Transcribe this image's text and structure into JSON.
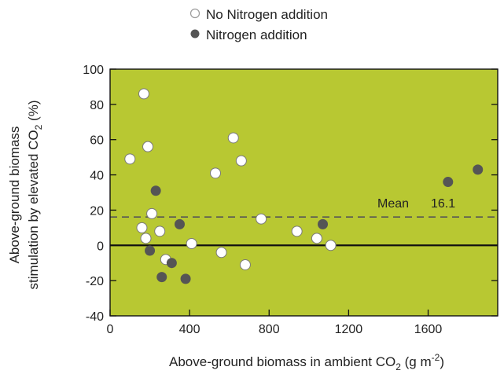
{
  "chart_data": {
    "type": "scatter",
    "title": "",
    "xlabel": "Above-ground biomass in ambient CO",
    "xlabel_sub": "2",
    "xlabel_units": " (g m",
    "xlabel_sup": "-2",
    "xlabel_close": ")",
    "ylabel_line1": "Above-ground biomass",
    "ylabel_line2": "stimulation by elevated CO",
    "ylabel_sub": "2",
    "ylabel_units": " (%)",
    "xlim": [
      0,
      1950
    ],
    "ylim": [
      -40,
      100
    ],
    "x_ticks": [
      0,
      400,
      800,
      1200,
      1600
    ],
    "x_tick_labels": [
      "0",
      "400",
      "800",
      "1200",
      "1600"
    ],
    "y_ticks": [
      -40,
      -20,
      0,
      20,
      40,
      60,
      80,
      100
    ],
    "y_tick_labels": [
      "-40",
      "-20",
      "0",
      "20",
      "40",
      "60",
      "80",
      "100"
    ],
    "grid": false,
    "legend_position": "top",
    "plot_background": "#b8c832",
    "reference_lines": [
      {
        "y": 0,
        "style": "solid"
      },
      {
        "y": 16.1,
        "style": "dashed"
      }
    ],
    "annotation": {
      "label": "Mean",
      "value": "16.1"
    },
    "series": [
      {
        "name": "No Nitrogen addition",
        "marker": "open",
        "fill": "#ffffff",
        "points": [
          [
            100,
            49
          ],
          [
            160,
            10
          ],
          [
            170,
            86
          ],
          [
            180,
            4
          ],
          [
            190,
            56
          ],
          [
            210,
            18
          ],
          [
            250,
            8
          ],
          [
            280,
            -8
          ],
          [
            410,
            1
          ],
          [
            530,
            41
          ],
          [
            560,
            -4
          ],
          [
            620,
            61
          ],
          [
            660,
            48
          ],
          [
            680,
            -11
          ],
          [
            760,
            15
          ],
          [
            940,
            8
          ],
          [
            1040,
            4
          ],
          [
            1110,
            0
          ]
        ]
      },
      {
        "name": "Nitrogen addition",
        "marker": "filled",
        "fill": "#555555",
        "points": [
          [
            200,
            -3
          ],
          [
            230,
            31
          ],
          [
            260,
            -18
          ],
          [
            310,
            -10
          ],
          [
            350,
            12
          ],
          [
            380,
            -19
          ],
          [
            1070,
            12
          ],
          [
            1700,
            36
          ],
          [
            1850,
            43
          ]
        ]
      }
    ]
  }
}
